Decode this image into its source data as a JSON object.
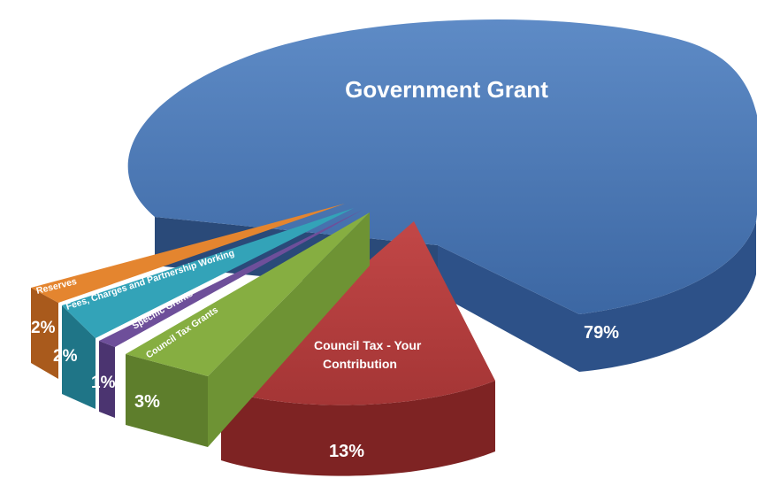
{
  "chart_data": {
    "type": "pie",
    "title": "",
    "slices": [
      {
        "label": "Government Grant",
        "value": 79,
        "value_label": "79%",
        "color": "#3F6EAB"
      },
      {
        "label": "Council Tax - Your Contribution",
        "label_lines": [
          "Council Tax - Your",
          "Contribution"
        ],
        "value": 13,
        "value_label": "13%",
        "color": "#B13A3A"
      },
      {
        "label": "Council Tax Grants",
        "value": 3,
        "value_label": "3%",
        "color": "#7BA23A"
      },
      {
        "label": "Specific Grants",
        "value": 1,
        "value_label": "1%",
        "color": "#6C4D97"
      },
      {
        "label": "Fees, Charges and Partnership Working",
        "value": 2,
        "value_label": "2%",
        "color": "#2E9DB3"
      },
      {
        "label": "Reserves",
        "value": 2,
        "value_label": "2%",
        "color": "#E07F2E"
      }
    ],
    "exploded": true,
    "style": "3d"
  }
}
